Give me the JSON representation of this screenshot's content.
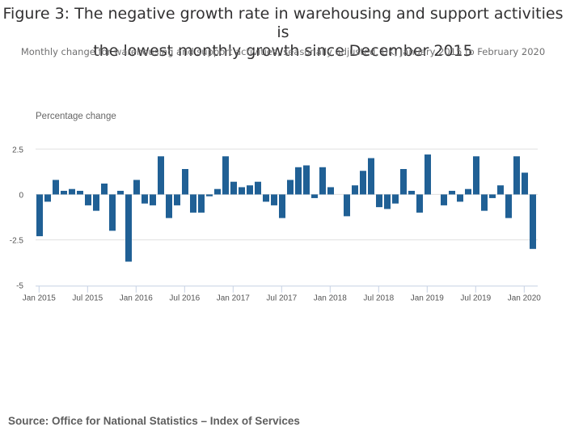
{
  "header": {
    "title_line1": "Figure 3: The negative growth rate in warehousing and support activities is",
    "title_line2": "the lowest monthly growth since December 2015",
    "subtitle": "Monthly change for warehousing and support activities, seasonally adjusted, UK, January 2015 to February 2020"
  },
  "footer": {
    "source": "Source: Office for National Statistics – Index of Services"
  },
  "colors": {
    "bar": "#206095",
    "grid": "#e0e0e0",
    "axis": "#c6d1e3"
  },
  "chart_data": {
    "type": "bar",
    "title": "Figure 3: The negative growth rate in warehousing and support activities is the lowest monthly growth since December 2015",
    "subtitle": "Monthly change for warehousing and support activities, seasonally adjusted, UK, January 2015 to February 2020",
    "xlabel": "",
    "ylabel": "Percentage change",
    "ylim": [
      -5,
      2.5
    ],
    "yticks": [
      2.5,
      0,
      -2.5,
      -5
    ],
    "ytick_labels": [
      "2.5",
      "0",
      "-2.5",
      "-5"
    ],
    "xtick_labels": [
      "Jan 2015",
      "Jul 2015",
      "Jan 2016",
      "Jul 2016",
      "Jan 2017",
      "Jul 2017",
      "Jan 2018",
      "Jul 2018",
      "Jan 2019",
      "Jul 2019",
      "Jan 2020"
    ],
    "xtick_every": 6,
    "grid": true,
    "legend": "none",
    "categories": [
      "Jan 2015",
      "Feb 2015",
      "Mar 2015",
      "Apr 2015",
      "May 2015",
      "Jun 2015",
      "Jul 2015",
      "Aug 2015",
      "Sep 2015",
      "Oct 2015",
      "Nov 2015",
      "Dec 2015",
      "Jan 2016",
      "Feb 2016",
      "Mar 2016",
      "Apr 2016",
      "May 2016",
      "Jun 2016",
      "Jul 2016",
      "Aug 2016",
      "Sep 2016",
      "Oct 2016",
      "Nov 2016",
      "Dec 2016",
      "Jan 2017",
      "Feb 2017",
      "Mar 2017",
      "Apr 2017",
      "May 2017",
      "Jun 2017",
      "Jul 2017",
      "Aug 2017",
      "Sep 2017",
      "Oct 2017",
      "Nov 2017",
      "Dec 2017",
      "Jan 2018",
      "Feb 2018",
      "Mar 2018",
      "Apr 2018",
      "May 2018",
      "Jun 2018",
      "Jul 2018",
      "Aug 2018",
      "Sep 2018",
      "Oct 2018",
      "Nov 2018",
      "Dec 2018",
      "Jan 2019",
      "Feb 2019",
      "Mar 2019",
      "Apr 2019",
      "May 2019",
      "Jun 2019",
      "Jul 2019",
      "Aug 2019",
      "Sep 2019",
      "Oct 2019",
      "Nov 2019",
      "Dec 2019",
      "Jan 2020",
      "Feb 2020"
    ],
    "values": [
      -2.3,
      -0.4,
      0.8,
      0.2,
      0.3,
      0.2,
      -0.6,
      -0.9,
      0.6,
      -2.0,
      0.2,
      -3.7,
      0.8,
      -0.5,
      -0.6,
      2.1,
      -1.3,
      -0.6,
      1.4,
      -1.0,
      -1.0,
      -0.1,
      0.3,
      2.1,
      0.7,
      0.4,
      0.5,
      0.7,
      -0.4,
      -0.6,
      -1.3,
      0.8,
      1.5,
      1.6,
      -0.2,
      1.5,
      0.4,
      0.0,
      -1.2,
      0.5,
      1.3,
      2.0,
      -0.7,
      -0.8,
      -0.5,
      1.4,
      0.2,
      -1.0,
      2.2,
      0.0,
      -0.6,
      0.2,
      -0.4,
      0.3,
      2.1,
      -0.9,
      -0.2,
      0.5,
      -1.3,
      2.1,
      1.2,
      -3.0
    ]
  }
}
